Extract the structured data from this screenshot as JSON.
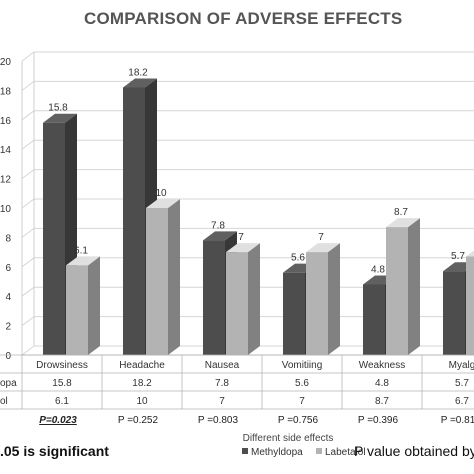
{
  "chart_data": {
    "type": "bar",
    "title": "COMPARISON OF ADVERSE EFFECTS",
    "xlabel": "Different side effects",
    "ylabel": "",
    "ylim": [
      0,
      20
    ],
    "yticks": [
      0,
      2,
      4,
      6,
      8,
      10,
      12,
      14,
      16,
      18,
      20
    ],
    "grid": true,
    "three_d": true,
    "categories": [
      "Drowsiness",
      "Headache",
      "Nausea",
      "Vomitiing",
      "Weakness",
      "Myalg"
    ],
    "series": [
      {
        "name": "Methyldopa",
        "row_label": "opa",
        "values": [
          15.8,
          18.2,
          7.8,
          5.6,
          4.8,
          5.7
        ],
        "color": "#4d4d4d"
      },
      {
        "name": "Labetalol",
        "row_label": "ol",
        "values": [
          6.1,
          10,
          7,
          7,
          8.7,
          6.7
        ],
        "color": "#b3b3b3"
      }
    ],
    "table_rows": [
      [
        "15.8",
        "18.2",
        "7.8",
        "5.6",
        "4.8",
        "5.7"
      ],
      [
        "6.1",
        "10",
        "7",
        "7",
        "8.7",
        "6.7"
      ]
    ],
    "data_labels": [
      [
        "15.8",
        "18.2",
        "7.8",
        "5.6",
        "4.8",
        "5.7"
      ],
      [
        "6.1",
        "10",
        "7",
        "7",
        "8.7",
        ""
      ]
    ],
    "p_values": [
      "P=0.023",
      "P =0.252",
      "P =0.803",
      "P =0.756",
      "P =0.396",
      "P =0.81"
    ],
    "p_value_emphasis": [
      true,
      false,
      false,
      false,
      false,
      false
    ],
    "footer_left": ".05 is significant",
    "footer_right": "P value obtained by"
  }
}
